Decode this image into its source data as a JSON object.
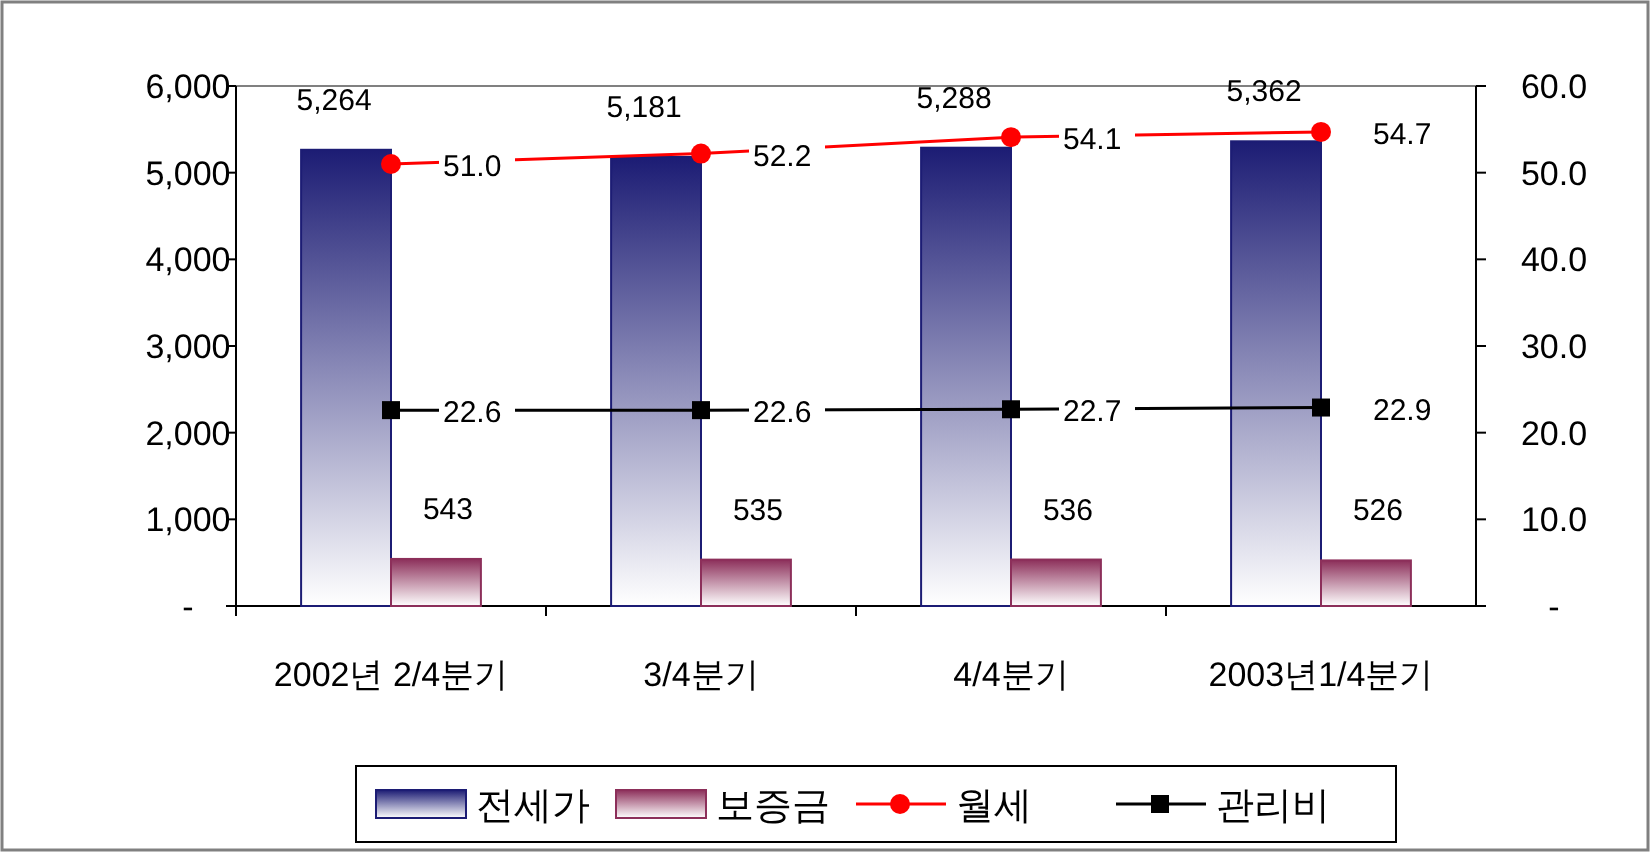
{
  "chart_data": {
    "type": "bar",
    "categories": [
      "2002년 2/4분기",
      "3/4분기",
      "4/4분기",
      "2003년1/4분기"
    ],
    "series": [
      {
        "name": "전세가",
        "color": "#1c1c74",
        "values": [
          5264,
          5181,
          5288,
          5362
        ],
        "value_labels": [
          "5,264",
          "5,181",
          "5,288",
          "5,362"
        ]
      },
      {
        "name": "보증금",
        "color": "#8c2f5a",
        "values": [
          543,
          535,
          536,
          526
        ],
        "value_labels": [
          "543",
          "535",
          "536",
          "526"
        ]
      },
      {
        "name": "월세",
        "type": "line",
        "axis": "y2",
        "color": "#ff0000",
        "marker": "circle",
        "values": [
          51.0,
          52.2,
          54.1,
          54.7
        ],
        "value_labels": [
          "51.0",
          "52.2",
          "54.1",
          "54.7"
        ]
      },
      {
        "name": "관리비",
        "type": "line",
        "axis": "y2",
        "color": "#000000",
        "marker": "square",
        "values": [
          22.6,
          22.6,
          22.7,
          22.9
        ],
        "value_labels": [
          "22.6",
          "22.6",
          "22.7",
          "22.9"
        ]
      }
    ],
    "ylim": [
      0,
      6000
    ],
    "yticks": [
      {
        "value": 0,
        "label": "-"
      },
      {
        "value": 1000,
        "label": "1,000"
      },
      {
        "value": 2000,
        "label": "2,000"
      },
      {
        "value": 3000,
        "label": "3,000"
      },
      {
        "value": 4000,
        "label": "4,000"
      },
      {
        "value": 5000,
        "label": "5,000"
      },
      {
        "value": 6000,
        "label": "6,000"
      }
    ],
    "y2lim": [
      0,
      60
    ],
    "y2ticks": [
      {
        "value": 0,
        "label": "-"
      },
      {
        "value": 10,
        "label": "10.0"
      },
      {
        "value": 20,
        "label": "20.0"
      },
      {
        "value": 30,
        "label": "30.0"
      },
      {
        "value": 40,
        "label": "40.0"
      },
      {
        "value": 50,
        "label": "50.0"
      },
      {
        "value": 60,
        "label": "60.0"
      }
    ],
    "grid": false,
    "legend": "bottom"
  }
}
